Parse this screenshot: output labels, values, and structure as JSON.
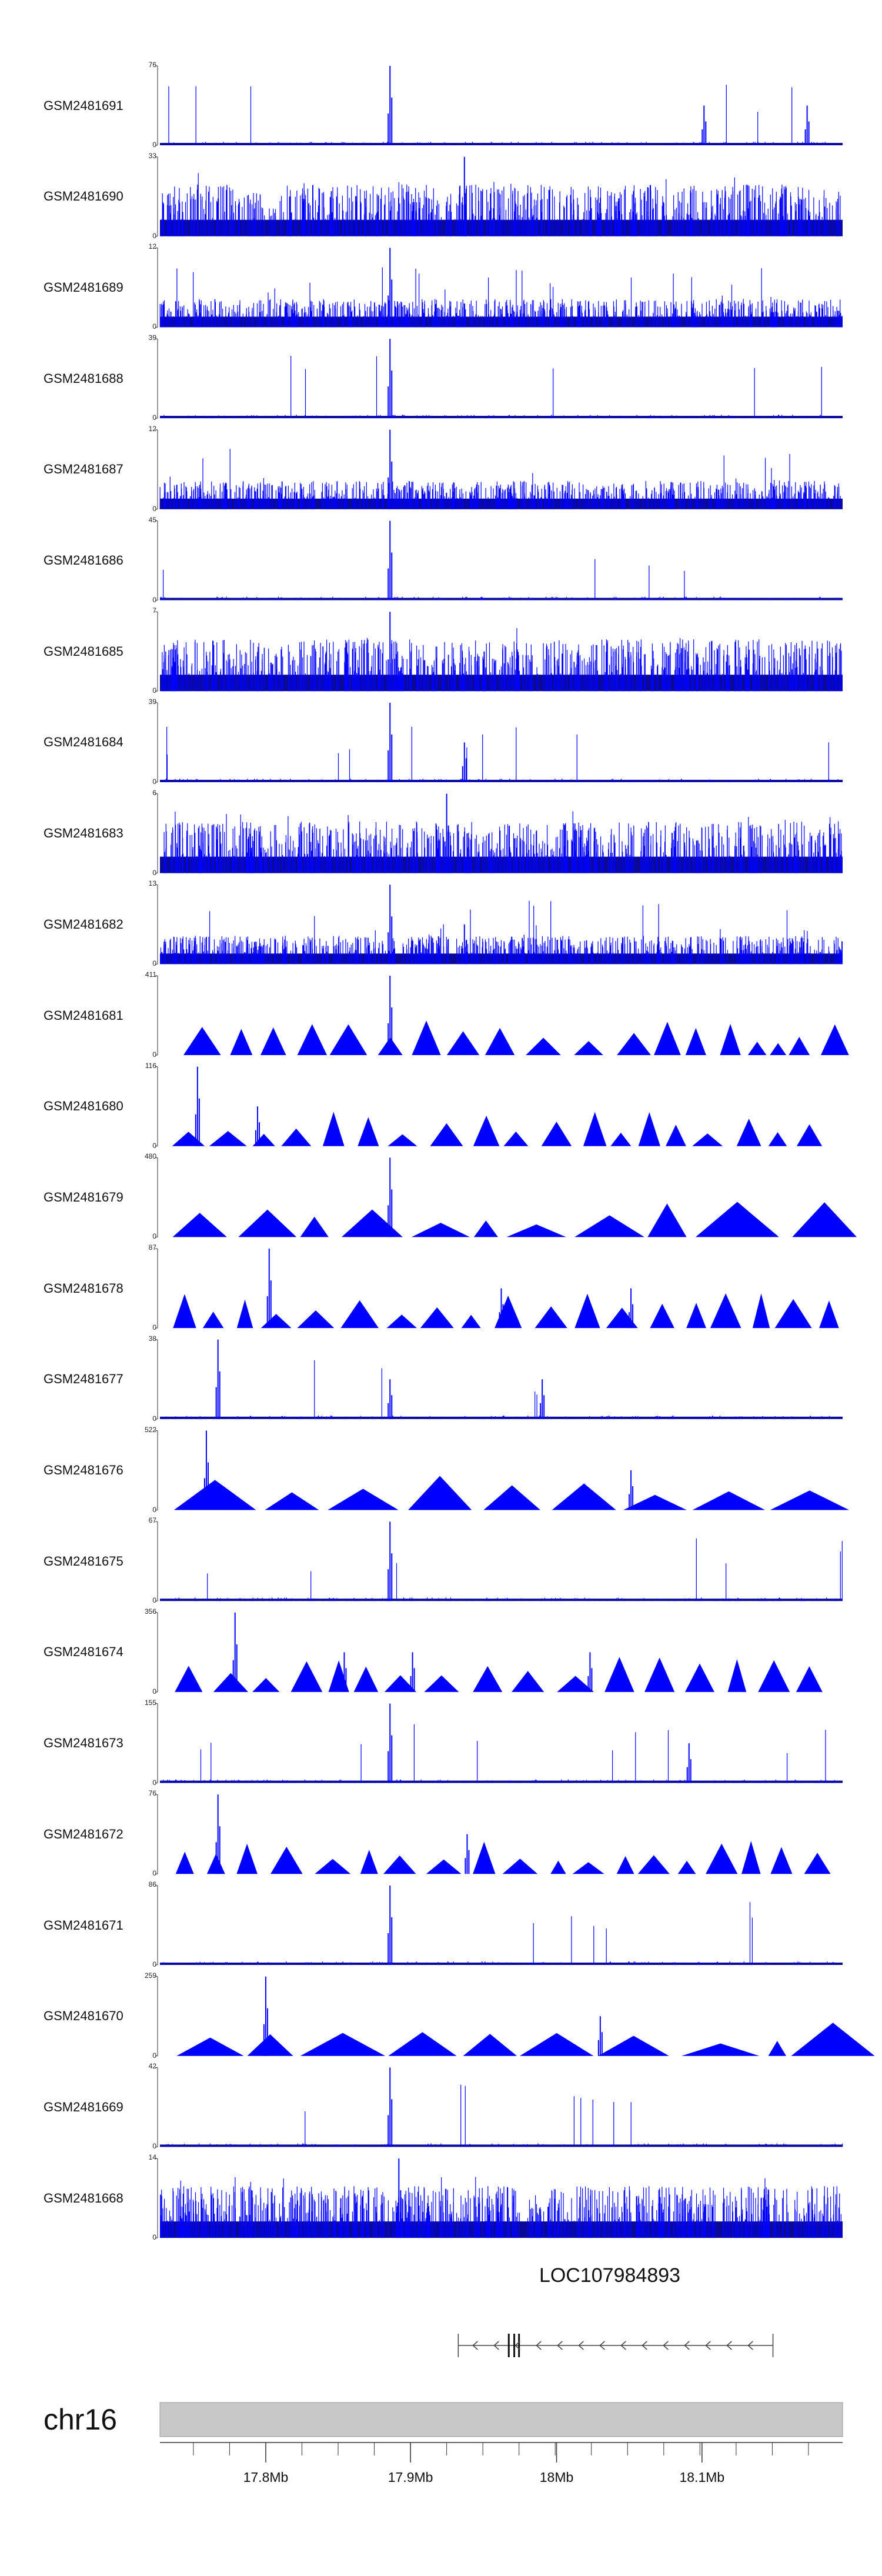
{
  "colors": {
    "signal": "#0000ff",
    "signal_bg": "#0a0a96",
    "axis": "#333333",
    "ideogram": "#c8c8c8",
    "gene": "#444444"
  },
  "tracks": [
    {
      "name": "GSM2481691",
      "ymax": "76",
      "ymin": "0",
      "style": "spikes",
      "peaks": [
        0.337,
        0.797,
        0.948
      ]
    },
    {
      "name": "GSM2481690",
      "ymax": "33",
      "ymin": "0",
      "style": "dense",
      "peaks": [
        0.446,
        0.19
      ]
    },
    {
      "name": "GSM2481689",
      "ymax": "12",
      "ymin": "0",
      "style": "noisy",
      "peaks": [
        0.337
      ]
    },
    {
      "name": "GSM2481688",
      "ymax": "39",
      "ymin": "0",
      "style": "spikes",
      "peaks": [
        0.337
      ]
    },
    {
      "name": "GSM2481687",
      "ymax": "12",
      "ymin": "0",
      "style": "noisy",
      "peaks": [
        0.337
      ]
    },
    {
      "name": "GSM2481686",
      "ymax": "45",
      "ymin": "0",
      "style": "spikes",
      "peaks": [
        0.337
      ]
    },
    {
      "name": "GSM2481685",
      "ymax": "7",
      "ymin": "0",
      "style": "dense",
      "peaks": [
        0.337,
        0.475
      ]
    },
    {
      "name": "GSM2481684",
      "ymax": "39",
      "ymin": "0",
      "style": "spikes",
      "peaks": [
        0.337,
        0.446
      ]
    },
    {
      "name": "GSM2481683",
      "ymax": "6",
      "ymin": "0",
      "style": "dense",
      "peaks": [
        0.42,
        0.45
      ]
    },
    {
      "name": "GSM2481682",
      "ymax": "13",
      "ymin": "0",
      "style": "noisy",
      "peaks": [
        0.337,
        0.446
      ]
    },
    {
      "name": "GSM2481681",
      "ymax": "411",
      "ymin": "0",
      "style": "triangles",
      "peaks": [
        0.337
      ]
    },
    {
      "name": "GSM2481680",
      "ymax": "116",
      "ymin": "0",
      "style": "triangles",
      "peaks": [
        0.055,
        0.143
      ]
    },
    {
      "name": "GSM2481679",
      "ymax": "480",
      "ymin": "0",
      "style": "triangles",
      "peaks": [
        0.337
      ]
    },
    {
      "name": "GSM2481678",
      "ymax": "87",
      "ymin": "0",
      "style": "triangles",
      "peaks": [
        0.16,
        0.5,
        0.69
      ]
    },
    {
      "name": "GSM2481677",
      "ymax": "38",
      "ymin": "0",
      "style": "spikes",
      "peaks": [
        0.085,
        0.337,
        0.56
      ]
    },
    {
      "name": "GSM2481676",
      "ymax": "522",
      "ymin": "0",
      "style": "triangles",
      "peaks": [
        0.068,
        0.69
      ]
    },
    {
      "name": "GSM2481675",
      "ymax": "67",
      "ymin": "0",
      "style": "spikes",
      "peaks": [
        0.337
      ]
    },
    {
      "name": "GSM2481674",
      "ymax": "356",
      "ymin": "0",
      "style": "triangles",
      "peaks": [
        0.11,
        0.27,
        0.37,
        0.63
      ]
    },
    {
      "name": "GSM2481673",
      "ymax": "155",
      "ymin": "0",
      "style": "spikes",
      "peaks": [
        0.337,
        0.775
      ]
    },
    {
      "name": "GSM2481672",
      "ymax": "76",
      "ymin": "0",
      "style": "triangles",
      "peaks": [
        0.085,
        0.45
      ]
    },
    {
      "name": "GSM2481671",
      "ymax": "86",
      "ymin": "0",
      "style": "spikes",
      "peaks": [
        0.337
      ]
    },
    {
      "name": "GSM2481670",
      "ymax": "259",
      "ymin": "0",
      "style": "triangles",
      "peaks": [
        0.155,
        0.645
      ]
    },
    {
      "name": "GSM2481669",
      "ymax": "42",
      "ymin": "0",
      "style": "spikes",
      "peaks": [
        0.337
      ]
    },
    {
      "name": "GSM2481668",
      "ymax": "14",
      "ymin": "0",
      "style": "dense",
      "peaks": [
        0.35,
        0.265
      ]
    }
  ],
  "gene": {
    "name": "LOC107984893",
    "start_frac": 0.437,
    "end_frac": 0.898,
    "exon_fracs": [
      0.511,
      0.519,
      0.526
    ],
    "strand": "-"
  },
  "chromosome": {
    "name": "chr16",
    "ticks": [
      {
        "label": "17.8Mb",
        "frac": 0.155
      },
      {
        "label": "17.9Mb",
        "frac": 0.367
      },
      {
        "label": "18Mb",
        "frac": 0.581
      },
      {
        "label": "18.1Mb",
        "frac": 0.794
      }
    ],
    "minor_per_major": 4
  }
}
